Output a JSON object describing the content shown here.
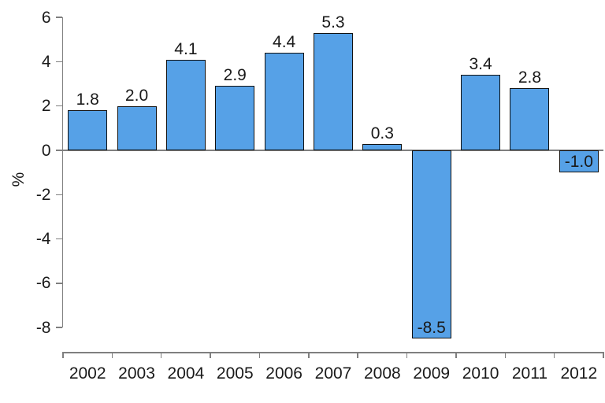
{
  "chart_data": {
    "type": "bar",
    "categories": [
      "2002",
      "2003",
      "2004",
      "2005",
      "2006",
      "2007",
      "2008",
      "2009",
      "2010",
      "2011",
      "2012"
    ],
    "values": [
      1.8,
      2.0,
      4.1,
      2.9,
      4.4,
      5.3,
      0.3,
      -8.5,
      3.4,
      2.8,
      -1.0
    ],
    "value_labels": [
      "1.8",
      "2.0",
      "4.1",
      "2.9",
      "4.4",
      "5.3",
      "0.3",
      "-8.5",
      "3.4",
      "2.8",
      "-1.0"
    ],
    "title": "",
    "xlabel": "",
    "ylabel": "%",
    "ylim": [
      -8.5,
      6
    ],
    "yticks": [
      6,
      4,
      2,
      0,
      -2,
      -4,
      -6,
      -8
    ],
    "grid": false,
    "legend": "none",
    "colors": {
      "bar_fill": "#56A1E7",
      "bar_border": "#111111",
      "axis": "#7f7f7f",
      "text": "#1a1a1a",
      "background": "#ffffff"
    }
  }
}
